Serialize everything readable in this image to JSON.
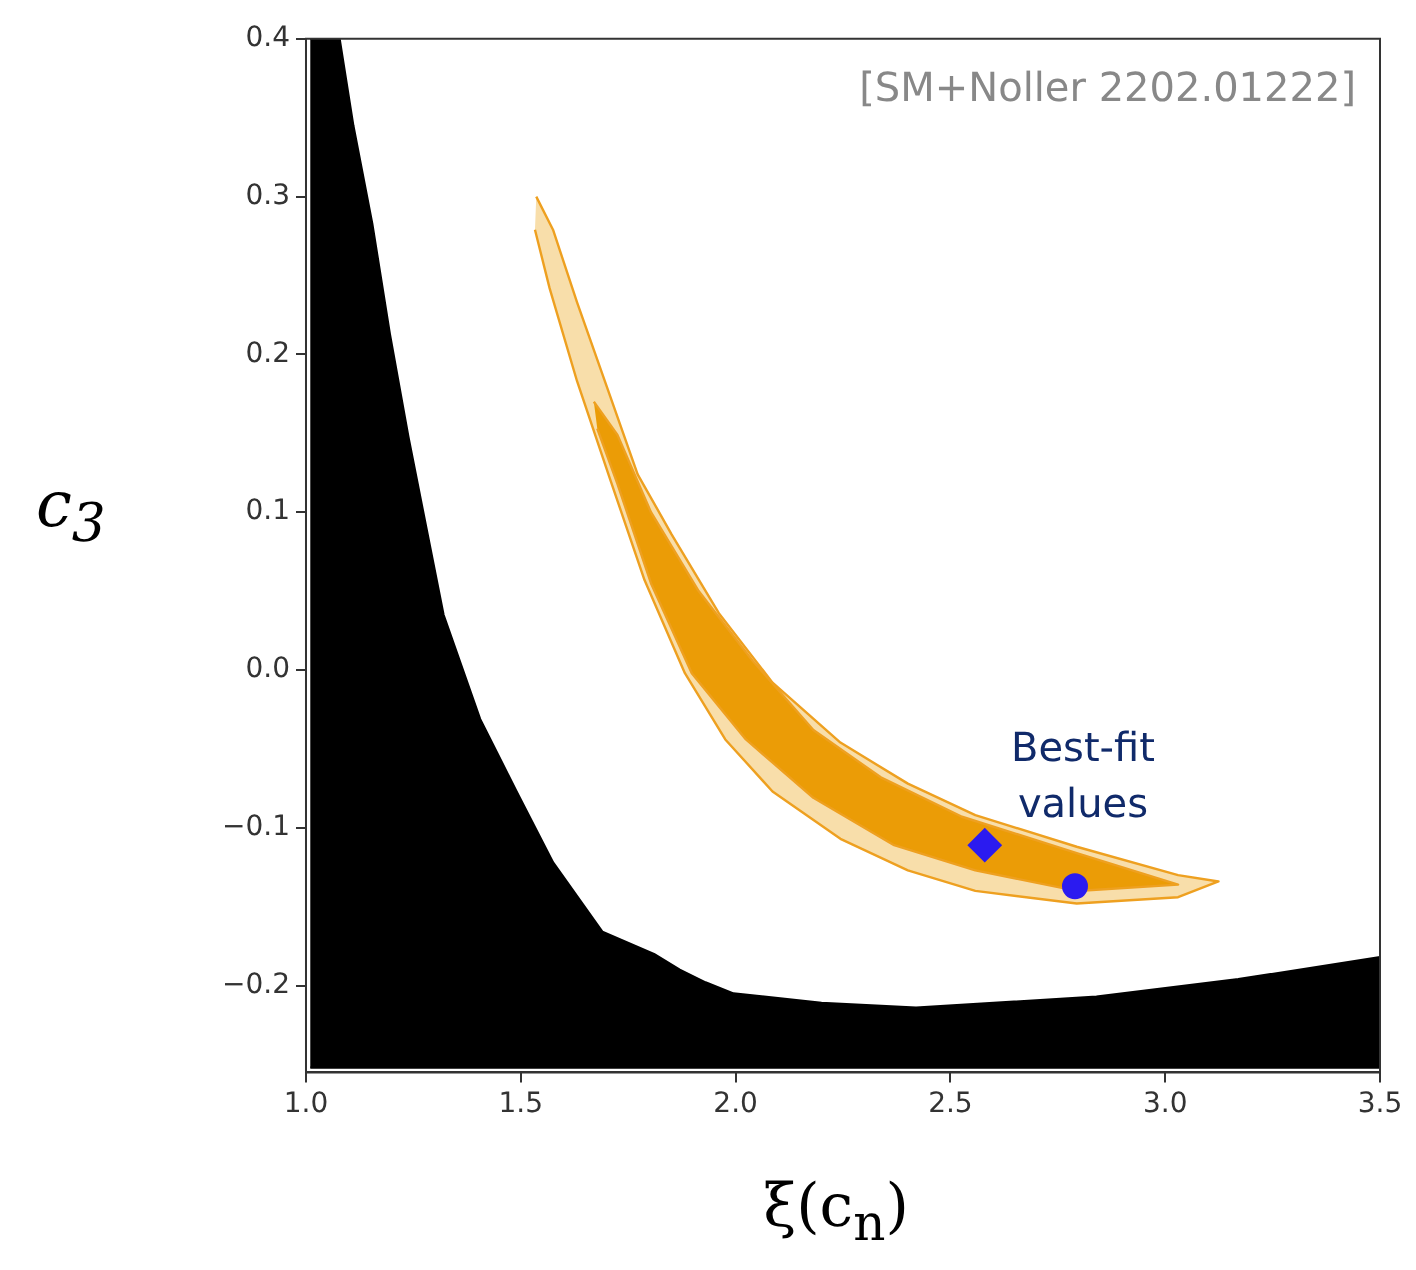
{
  "chart_data": {
    "type": "area",
    "xlabel": "ξ(c$_{n}$)",
    "ylabel": "c$_{3}$",
    "xlim": [
      1.0,
      3.5
    ],
    "ylim": [
      -0.255,
      0.4
    ],
    "xticks": [
      {
        "value": 1,
        "label": "1.0"
      },
      {
        "value": 1.5,
        "label": "1.5"
      },
      {
        "value": 2,
        "label": "2.0"
      },
      {
        "value": 2.5,
        "label": "2.5"
      },
      {
        "value": 3,
        "label": "3.0"
      },
      {
        "value": 3.5,
        "label": "3.5"
      }
    ],
    "yticks": [
      {
        "value": -0.2,
        "label": "−0.2"
      },
      {
        "value": -0.1,
        "label": "−0.1"
      },
      {
        "value": 0,
        "label": "0.0"
      },
      {
        "value": 0.1,
        "label": "0.1"
      },
      {
        "value": 0.2,
        "label": "0.2"
      },
      {
        "value": 0.3,
        "label": "0.3"
      },
      {
        "value": 0.4,
        "label": "0.4"
      }
    ],
    "grid": false,
    "legend": false,
    "series": [
      {
        "color": "#000000",
        "x": [
          1.01,
          1.078,
          1.11,
          1.154,
          1.195,
          1.238,
          1.28,
          1.32,
          1.405,
          1.49,
          1.575,
          1.69,
          1.81,
          1.87,
          1.93,
          1.995,
          2.2,
          2.42,
          2.84,
          3.17,
          3.5,
          3.5,
          1.01
        ],
        "values": [
          0.4,
          0.4,
          0.345,
          0.283,
          0.213,
          0.148,
          0.09,
          0.035,
          -0.031,
          -0.077,
          -0.122,
          -0.166,
          -0.18,
          -0.19,
          -0.198,
          -0.205,
          -0.211,
          -0.214,
          -0.207,
          -0.196,
          -0.182,
          -0.252,
          -0.252
        ]
      },
      {
        "color": "#f8deaa",
        "x": [
          1.536,
          1.575,
          1.631,
          1.701,
          1.772,
          1.851,
          1.961,
          2.086,
          2.244,
          2.401,
          2.558,
          2.794,
          3.03,
          3.124,
          3.03,
          2.794,
          2.558,
          2.401,
          2.244,
          2.086,
          1.976,
          1.882,
          1.788,
          1.709,
          1.631,
          1.567,
          1.533
        ],
        "values": [
          0.3,
          0.279,
          0.233,
          0.179,
          0.124,
          0.086,
          0.036,
          -0.008,
          -0.046,
          -0.072,
          -0.092,
          -0.112,
          -0.13,
          -0.134,
          -0.144,
          -0.148,
          -0.14,
          -0.127,
          -0.107,
          -0.077,
          -0.044,
          -0.002,
          0.057,
          0.12,
          0.183,
          0.242,
          0.279
        ]
      },
      {
        "color": "#eb9c06",
        "x": [
          1.67,
          1.725,
          1.803,
          1.914,
          2.039,
          2.181,
          2.338,
          2.527,
          2.794,
          3.03,
          2.794,
          2.558,
          2.369,
          2.181,
          2.024,
          1.898,
          1.803,
          1.725,
          1.678
        ],
        "values": [
          0.17,
          0.149,
          0.1,
          0.05,
          0.006,
          -0.038,
          -0.068,
          -0.093,
          -0.116,
          -0.136,
          -0.14,
          -0.127,
          -0.111,
          -0.081,
          -0.044,
          -0.002,
          0.055,
          0.118,
          0.153
        ]
      },
      {
        "type": "scatter",
        "marker": "diamond",
        "color": "#2b1bf0",
        "x": [
          2.58
        ],
        "values": [
          -0.111
        ]
      },
      {
        "type": "scatter",
        "marker": "circle",
        "color": "#2b1bf0",
        "x": [
          2.79
        ],
        "values": [
          -0.137
        ]
      }
    ],
    "annotations": [
      "[SM+Noller 2202.01222]",
      {
        "text": "Best-fit values",
        "x": 2.79,
        "y": -0.137
      }
    ]
  }
}
